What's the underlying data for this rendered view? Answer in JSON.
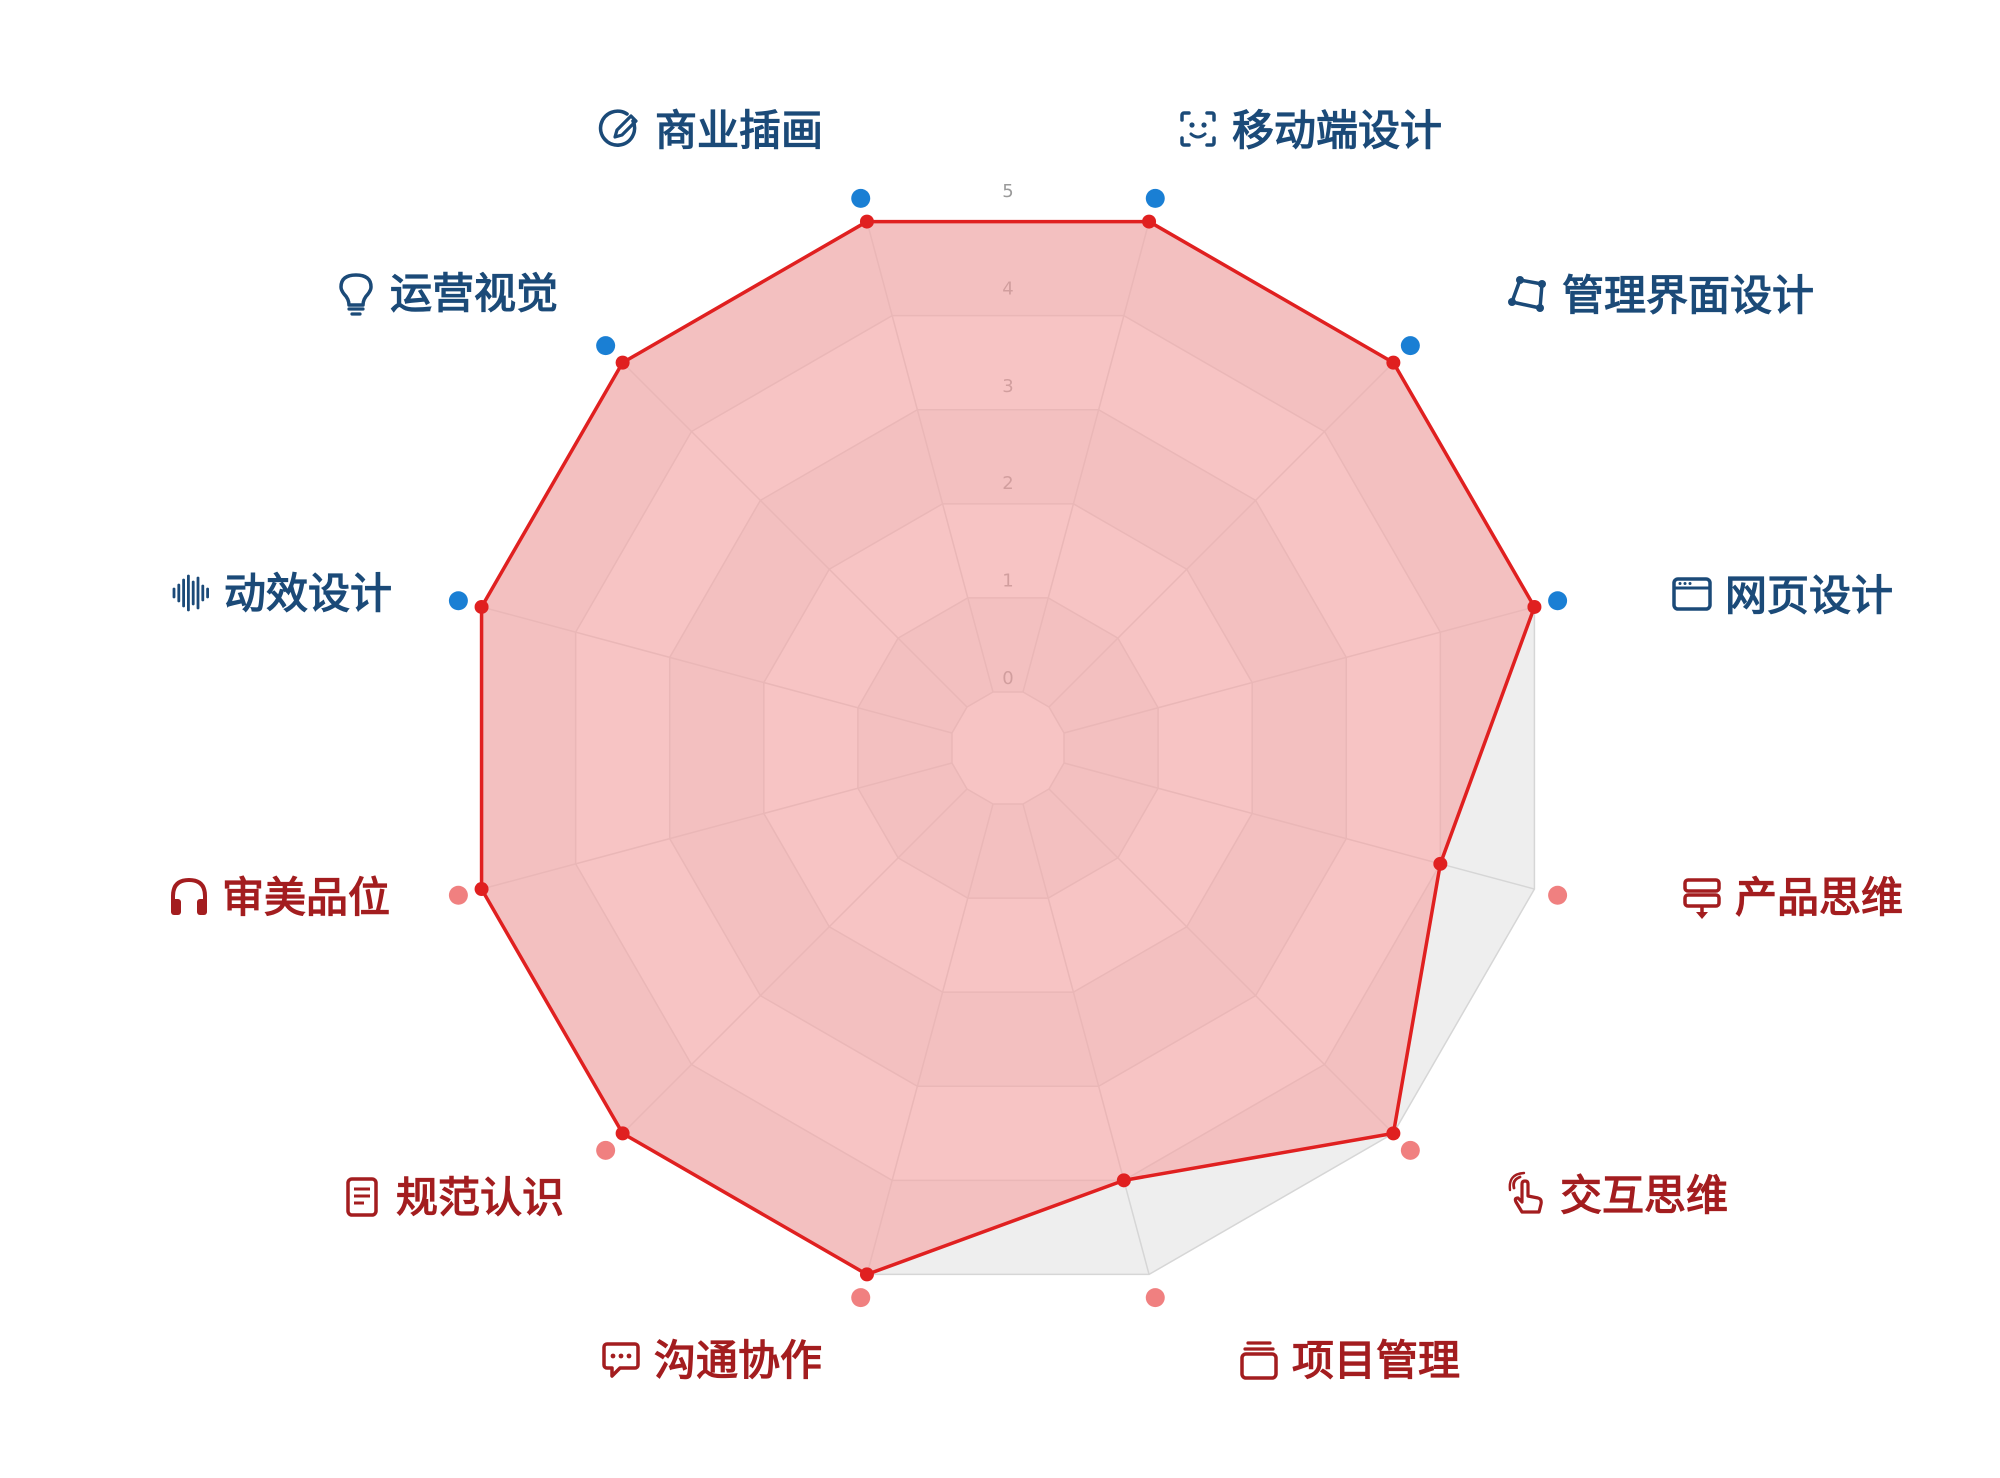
{
  "chart_data": {
    "type": "radar",
    "title": "",
    "scale": {
      "min": 0,
      "max": 5,
      "ticks": [
        "0",
        "1",
        "2",
        "3",
        "4",
        "5"
      ]
    },
    "categories": [
      {
        "label": "移动端设计",
        "icon": "face-scan-icon",
        "group": "design"
      },
      {
        "label": "管理界面设计",
        "icon": "vector-shape-icon",
        "group": "design"
      },
      {
        "label": "网页设计",
        "icon": "browser-window-icon",
        "group": "design"
      },
      {
        "label": "产品思维",
        "icon": "server-download-icon",
        "group": "thinking"
      },
      {
        "label": "交互思维",
        "icon": "hand-tap-icon",
        "group": "thinking"
      },
      {
        "label": "项目管理",
        "icon": "stack-icon",
        "group": "thinking"
      },
      {
        "label": "沟通协作",
        "icon": "chat-bubble-icon",
        "group": "thinking"
      },
      {
        "label": "规范认识",
        "icon": "document-icon",
        "group": "thinking"
      },
      {
        "label": "审美品位",
        "icon": "headphones-icon",
        "group": "thinking"
      },
      {
        "label": "动效设计",
        "icon": "waveform-icon",
        "group": "design"
      },
      {
        "label": "运营视觉",
        "icon": "lightbulb-icon",
        "group": "design"
      },
      {
        "label": "商业插画",
        "icon": "pencil-circle-icon",
        "group": "design"
      }
    ],
    "series": [
      {
        "values": [
          5,
          5,
          5,
          4,
          5,
          4,
          5,
          5,
          5,
          5,
          5,
          5
        ]
      }
    ],
    "colors": {
      "design_text": "#1b4a78",
      "design_dot": "#1a7fd4",
      "thinking_text": "#a31d1f",
      "thinking_dot": "#f08080",
      "series_line": "#e02020",
      "series_fill": "#f7a1a1",
      "band_light": "#f7f7f7",
      "band_dark": "#eeeeee"
    }
  }
}
